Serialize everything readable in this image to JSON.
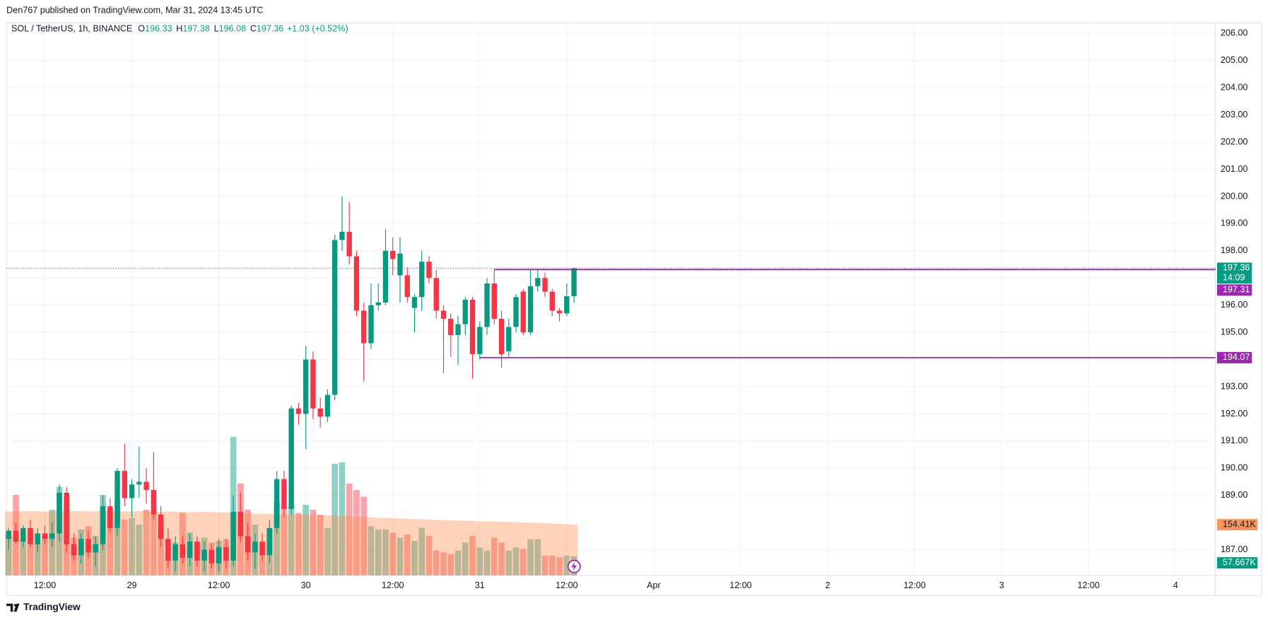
{
  "page": {
    "header": "Den767 published on TradingView.com, Mar 31, 2024 13:45 UTC",
    "footer": "TradingView"
  },
  "chart_data": {
    "type": "candlestick",
    "symbol": "SOL / TetherUS, 1h, BINANCE",
    "ohlc_legend": [
      {
        "key": "O",
        "value": "196.33"
      },
      {
        "key": "H",
        "value": "197.38"
      },
      {
        "key": "L",
        "value": "196.08"
      },
      {
        "key": "C",
        "value": "197.36"
      }
    ],
    "change": "+1.03 (+0.52%)",
    "up_color": "#089981",
    "down_color": "#f23645",
    "volume_up_color": "rgba(8,153,129,0.45)",
    "volume_down_color": "rgba(242,54,69,0.45)",
    "volume_ma_color": "rgba(255,140,70,0.38)",
    "volume_ma_label_color": "#f7955e",
    "level_color": "#9c27b0",
    "grid": true,
    "xlim": [
      6.7,
      173.5
    ],
    "xticks": [
      {
        "value": 12,
        "label": "12:00"
      },
      {
        "value": 24,
        "label": "29"
      },
      {
        "value": 36,
        "label": "12:00"
      },
      {
        "value": 48,
        "label": "30"
      },
      {
        "value": 60,
        "label": "12:00"
      },
      {
        "value": 72,
        "label": "31"
      },
      {
        "value": 84,
        "label": "12:00"
      },
      {
        "value": 96,
        "label": "Apr"
      },
      {
        "value": 108,
        "label": "12:00"
      },
      {
        "value": 120,
        "label": "2"
      },
      {
        "value": 132,
        "label": "12:00"
      },
      {
        "value": 144,
        "label": "3"
      },
      {
        "value": 156,
        "label": "12:00"
      },
      {
        "value": 168,
        "label": "4"
      }
    ],
    "ylim": [
      186.06,
      206.33
    ],
    "yticks": [
      {
        "value": 187,
        "label": "187.00"
      },
      {
        "value": 189,
        "label": "189.00"
      },
      {
        "value": 190,
        "label": "190.00"
      },
      {
        "value": 191,
        "label": "191.00"
      },
      {
        "value": 192,
        "label": "192.00"
      },
      {
        "value": 193,
        "label": "193.00"
      },
      {
        "value": 194,
        "label": "194.00"
      },
      {
        "value": 195,
        "label": "195.00"
      },
      {
        "value": 196,
        "label": "196.00"
      },
      {
        "value": 197,
        "label": "197.00"
      },
      {
        "value": 198,
        "label": "198.00"
      },
      {
        "value": 199,
        "label": "199.00"
      },
      {
        "value": 200,
        "label": "200.00"
      },
      {
        "value": 201,
        "label": "201.00"
      },
      {
        "value": 202,
        "label": "202.00"
      },
      {
        "value": 203,
        "label": "203.00"
      },
      {
        "value": 204,
        "label": "204.00"
      },
      {
        "value": 205,
        "label": "205.00"
      },
      {
        "value": 206,
        "label": "206.00"
      }
    ],
    "volume_lim": [
      0,
      1680000
    ],
    "x": [
      7,
      8,
      9,
      10,
      11,
      12,
      13,
      14,
      15,
      16,
      17,
      18,
      19,
      20,
      21,
      22,
      23,
      24,
      25,
      26,
      27,
      28,
      29,
      30,
      31,
      32,
      33,
      34,
      35,
      36,
      37,
      38,
      39,
      40,
      41,
      42,
      43,
      44,
      45,
      46,
      47,
      48,
      49,
      50,
      51,
      52,
      53,
      54,
      55,
      56,
      57,
      58,
      59,
      60,
      61,
      62,
      63,
      64,
      65,
      66,
      67,
      68,
      69,
      70,
      71,
      72,
      73,
      74,
      75,
      76,
      77,
      78,
      79,
      80,
      81,
      82,
      83,
      84,
      85
    ],
    "open": [
      187.4,
      187.7,
      187.3,
      187.8,
      187.2,
      187.6,
      187.4,
      187.6,
      189.1,
      187.2,
      186.8,
      187.4,
      186.9,
      187.2,
      188.6,
      187.8,
      189.9,
      188.9,
      189.4,
      189.5,
      189.2,
      188.3,
      187.4,
      186.6,
      187.2,
      186.7,
      187.3,
      186.6,
      187.0,
      186.5,
      187.1,
      186.6,
      188.4,
      187.5,
      186.9,
      187.3,
      186.8,
      187.8,
      189.6,
      188.5,
      192.2,
      192.0,
      194.0,
      192.2,
      191.9,
      192.7,
      198.4,
      198.7,
      197.8,
      195.8,
      194.6,
      196.0,
      196.1,
      198.0,
      197.1,
      197.1,
      195.9,
      196.3,
      197.6,
      197.0,
      195.8,
      195.5,
      194.9,
      195.3,
      196.2,
      194.2,
      195.2,
      196.8,
      195.5,
      194.3,
      195.2,
      196.5,
      195.0,
      196.7,
      197.0,
      196.5,
      195.8,
      195.7,
      196.33
    ],
    "high": [
      187.8,
      188.0,
      187.9,
      188.1,
      187.8,
      187.9,
      188.0,
      189.4,
      189.3,
      187.6,
      187.6,
      187.7,
      187.5,
      189.0,
      188.9,
      190.0,
      190.9,
      189.6,
      190.8,
      190.0,
      190.6,
      188.6,
      187.8,
      187.5,
      187.5,
      187.6,
      187.5,
      187.3,
      187.2,
      187.4,
      187.4,
      189.0,
      189.1,
      188.0,
      187.6,
      187.6,
      188.1,
      189.9,
      189.9,
      192.3,
      192.4,
      194.5,
      194.3,
      192.6,
      192.9,
      198.6,
      200.0,
      199.8,
      198.0,
      196.1,
      196.8,
      196.8,
      198.8,
      198.5,
      198.5,
      197.4,
      196.4,
      198.0,
      197.8,
      197.3,
      196.0,
      195.7,
      195.6,
      196.3,
      196.3,
      195.4,
      197.0,
      197.3,
      195.8,
      195.5,
      196.4,
      196.6,
      197.3,
      197.3,
      197.2,
      196.6,
      195.9,
      196.8,
      197.38
    ],
    "low": [
      187.0,
      187.2,
      187.1,
      187.1,
      186.9,
      187.2,
      187.1,
      187.3,
      186.9,
      186.6,
      186.5,
      186.7,
      186.4,
      187.0,
      187.6,
      187.5,
      188.6,
      188.2,
      188.9,
      188.7,
      188.1,
      187.1,
      186.3,
      186.2,
      186.5,
      186.4,
      186.4,
      186.2,
      186.3,
      186.2,
      186.3,
      186.4,
      187.3,
      186.6,
      186.3,
      186.6,
      186.5,
      187.6,
      188.2,
      188.3,
      191.6,
      190.7,
      191.8,
      191.5,
      191.7,
      192.5,
      198.0,
      197.5,
      195.6,
      193.2,
      194.4,
      195.8,
      196.0,
      197.1,
      196.1,
      196.1,
      195.0,
      195.8,
      196.8,
      195.5,
      193.5,
      194.1,
      193.8,
      194.9,
      193.3,
      194.0,
      194.9,
      195.3,
      193.7,
      194.1,
      195.0,
      194.9,
      194.9,
      196.5,
      196.3,
      195.6,
      195.4,
      195.6,
      196.08
    ],
    "close": [
      187.7,
      187.3,
      187.8,
      187.2,
      187.6,
      187.4,
      187.6,
      189.1,
      187.2,
      186.8,
      187.4,
      186.9,
      187.2,
      188.6,
      187.8,
      189.9,
      188.9,
      189.4,
      189.5,
      189.2,
      188.3,
      187.4,
      186.6,
      187.2,
      186.7,
      187.3,
      186.6,
      187.0,
      186.5,
      187.1,
      186.6,
      188.4,
      187.5,
      186.9,
      187.3,
      186.8,
      187.8,
      189.6,
      188.5,
      192.2,
      192.0,
      194.0,
      192.2,
      191.9,
      192.7,
      198.4,
      198.7,
      197.8,
      195.8,
      194.6,
      196.0,
      196.1,
      198.0,
      197.7,
      197.9,
      196.3,
      196.3,
      197.6,
      197.0,
      195.8,
      195.5,
      194.9,
      195.3,
      196.2,
      194.2,
      195.2,
      196.8,
      195.5,
      194.2,
      195.2,
      196.3,
      195.0,
      196.7,
      197.0,
      196.5,
      195.8,
      195.7,
      196.33,
      197.36
    ],
    "volume": [
      120000,
      245000,
      110000,
      130000,
      100000,
      120000,
      200000,
      270000,
      240000,
      115000,
      140000,
      150000,
      120000,
      245000,
      200000,
      225000,
      170000,
      175000,
      155000,
      200000,
      195000,
      165000,
      105000,
      100000,
      190000,
      130000,
      100000,
      115000,
      100000,
      105000,
      110000,
      422000,
      280000,
      200000,
      155000,
      100000,
      140000,
      225000,
      210000,
      215000,
      190000,
      215000,
      200000,
      185000,
      145000,
      340000,
      345000,
      280000,
      260000,
      240000,
      150000,
      140000,
      140000,
      130000,
      115000,
      125000,
      105000,
      145000,
      120000,
      75000,
      70000,
      65000,
      75000,
      100000,
      120000,
      85000,
      75000,
      115000,
      100000,
      75000,
      85000,
      80000,
      110000,
      110000,
      60000,
      60000,
      55000,
      60000,
      57667
    ],
    "volume_ma": [
      195000,
      195500,
      196000,
      196000,
      195500,
      195000,
      195500,
      196000,
      196500,
      196000,
      195500,
      195000,
      195500,
      196000,
      196000,
      195500,
      195000,
      195000,
      195500,
      195000,
      194500,
      194000,
      194500,
      194000,
      193500,
      193000,
      193000,
      193500,
      193000,
      192500,
      192000,
      191000,
      190000,
      189000,
      188000,
      187500,
      187000,
      186500,
      186000,
      185500,
      185000,
      184500,
      184000,
      183500,
      183000,
      182000,
      181000,
      180000,
      179000,
      178000,
      177000,
      176000,
      175000,
      174000,
      173000,
      172000,
      171500,
      171000,
      170000,
      169000,
      168500,
      168000,
      167000,
      166500,
      166000,
      165000,
      164500,
      164000,
      163000,
      162500,
      162000,
      161000,
      160500,
      160000,
      159000,
      158000,
      157000,
      156000,
      154410
    ],
    "volume_label": {
      "value": 57667,
      "label": "57.667K"
    },
    "volume_ma_label": {
      "value": 154410,
      "label": "154.41K"
    },
    "last_price": {
      "value": 197.36,
      "label": "197.36",
      "countdown": "14:09"
    },
    "levels": [
      {
        "value": 197.31,
        "label": "197.31",
        "from": 74
      },
      {
        "value": 194.07,
        "label": "194.07",
        "from": 72
      }
    ]
  }
}
